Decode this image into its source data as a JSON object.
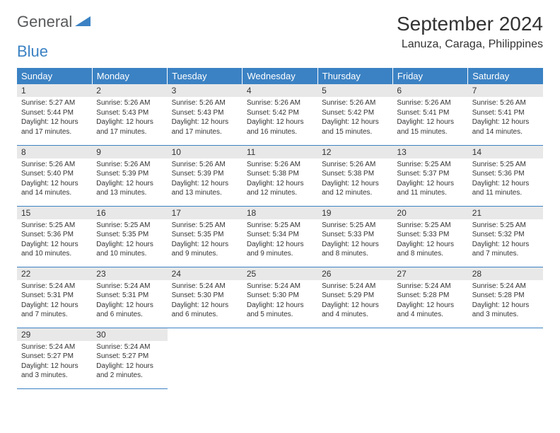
{
  "logo": {
    "text1": "General",
    "text2": "Blue"
  },
  "header": {
    "month_title": "September 2024",
    "location": "Lanuza, Caraga, Philippines"
  },
  "colors": {
    "header_bg": "#3b82c4",
    "header_text": "#ffffff",
    "daynum_bg": "#e8e8e8",
    "border": "#3b82c4",
    "logo_gray": "#58595b",
    "logo_blue": "#3b82c4"
  },
  "weekdays": [
    "Sunday",
    "Monday",
    "Tuesday",
    "Wednesday",
    "Thursday",
    "Friday",
    "Saturday"
  ],
  "days": [
    {
      "n": "1",
      "sunrise": "5:27 AM",
      "sunset": "5:44 PM",
      "daylight": "12 hours and 17 minutes."
    },
    {
      "n": "2",
      "sunrise": "5:26 AM",
      "sunset": "5:43 PM",
      "daylight": "12 hours and 17 minutes."
    },
    {
      "n": "3",
      "sunrise": "5:26 AM",
      "sunset": "5:43 PM",
      "daylight": "12 hours and 17 minutes."
    },
    {
      "n": "4",
      "sunrise": "5:26 AM",
      "sunset": "5:42 PM",
      "daylight": "12 hours and 16 minutes."
    },
    {
      "n": "5",
      "sunrise": "5:26 AM",
      "sunset": "5:42 PM",
      "daylight": "12 hours and 15 minutes."
    },
    {
      "n": "6",
      "sunrise": "5:26 AM",
      "sunset": "5:41 PM",
      "daylight": "12 hours and 15 minutes."
    },
    {
      "n": "7",
      "sunrise": "5:26 AM",
      "sunset": "5:41 PM",
      "daylight": "12 hours and 14 minutes."
    },
    {
      "n": "8",
      "sunrise": "5:26 AM",
      "sunset": "5:40 PM",
      "daylight": "12 hours and 14 minutes."
    },
    {
      "n": "9",
      "sunrise": "5:26 AM",
      "sunset": "5:39 PM",
      "daylight": "12 hours and 13 minutes."
    },
    {
      "n": "10",
      "sunrise": "5:26 AM",
      "sunset": "5:39 PM",
      "daylight": "12 hours and 13 minutes."
    },
    {
      "n": "11",
      "sunrise": "5:26 AM",
      "sunset": "5:38 PM",
      "daylight": "12 hours and 12 minutes."
    },
    {
      "n": "12",
      "sunrise": "5:26 AM",
      "sunset": "5:38 PM",
      "daylight": "12 hours and 12 minutes."
    },
    {
      "n": "13",
      "sunrise": "5:25 AM",
      "sunset": "5:37 PM",
      "daylight": "12 hours and 11 minutes."
    },
    {
      "n": "14",
      "sunrise": "5:25 AM",
      "sunset": "5:36 PM",
      "daylight": "12 hours and 11 minutes."
    },
    {
      "n": "15",
      "sunrise": "5:25 AM",
      "sunset": "5:36 PM",
      "daylight": "12 hours and 10 minutes."
    },
    {
      "n": "16",
      "sunrise": "5:25 AM",
      "sunset": "5:35 PM",
      "daylight": "12 hours and 10 minutes."
    },
    {
      "n": "17",
      "sunrise": "5:25 AM",
      "sunset": "5:35 PM",
      "daylight": "12 hours and 9 minutes."
    },
    {
      "n": "18",
      "sunrise": "5:25 AM",
      "sunset": "5:34 PM",
      "daylight": "12 hours and 9 minutes."
    },
    {
      "n": "19",
      "sunrise": "5:25 AM",
      "sunset": "5:33 PM",
      "daylight": "12 hours and 8 minutes."
    },
    {
      "n": "20",
      "sunrise": "5:25 AM",
      "sunset": "5:33 PM",
      "daylight": "12 hours and 8 minutes."
    },
    {
      "n": "21",
      "sunrise": "5:25 AM",
      "sunset": "5:32 PM",
      "daylight": "12 hours and 7 minutes."
    },
    {
      "n": "22",
      "sunrise": "5:24 AM",
      "sunset": "5:31 PM",
      "daylight": "12 hours and 7 minutes."
    },
    {
      "n": "23",
      "sunrise": "5:24 AM",
      "sunset": "5:31 PM",
      "daylight": "12 hours and 6 minutes."
    },
    {
      "n": "24",
      "sunrise": "5:24 AM",
      "sunset": "5:30 PM",
      "daylight": "12 hours and 6 minutes."
    },
    {
      "n": "25",
      "sunrise": "5:24 AM",
      "sunset": "5:30 PM",
      "daylight": "12 hours and 5 minutes."
    },
    {
      "n": "26",
      "sunrise": "5:24 AM",
      "sunset": "5:29 PM",
      "daylight": "12 hours and 4 minutes."
    },
    {
      "n": "27",
      "sunrise": "5:24 AM",
      "sunset": "5:28 PM",
      "daylight": "12 hours and 4 minutes."
    },
    {
      "n": "28",
      "sunrise": "5:24 AM",
      "sunset": "5:28 PM",
      "daylight": "12 hours and 3 minutes."
    },
    {
      "n": "29",
      "sunrise": "5:24 AM",
      "sunset": "5:27 PM",
      "daylight": "12 hours and 3 minutes."
    },
    {
      "n": "30",
      "sunrise": "5:24 AM",
      "sunset": "5:27 PM",
      "daylight": "12 hours and 2 minutes."
    }
  ],
  "labels": {
    "sunrise": "Sunrise:",
    "sunset": "Sunset:",
    "daylight": "Daylight:"
  }
}
